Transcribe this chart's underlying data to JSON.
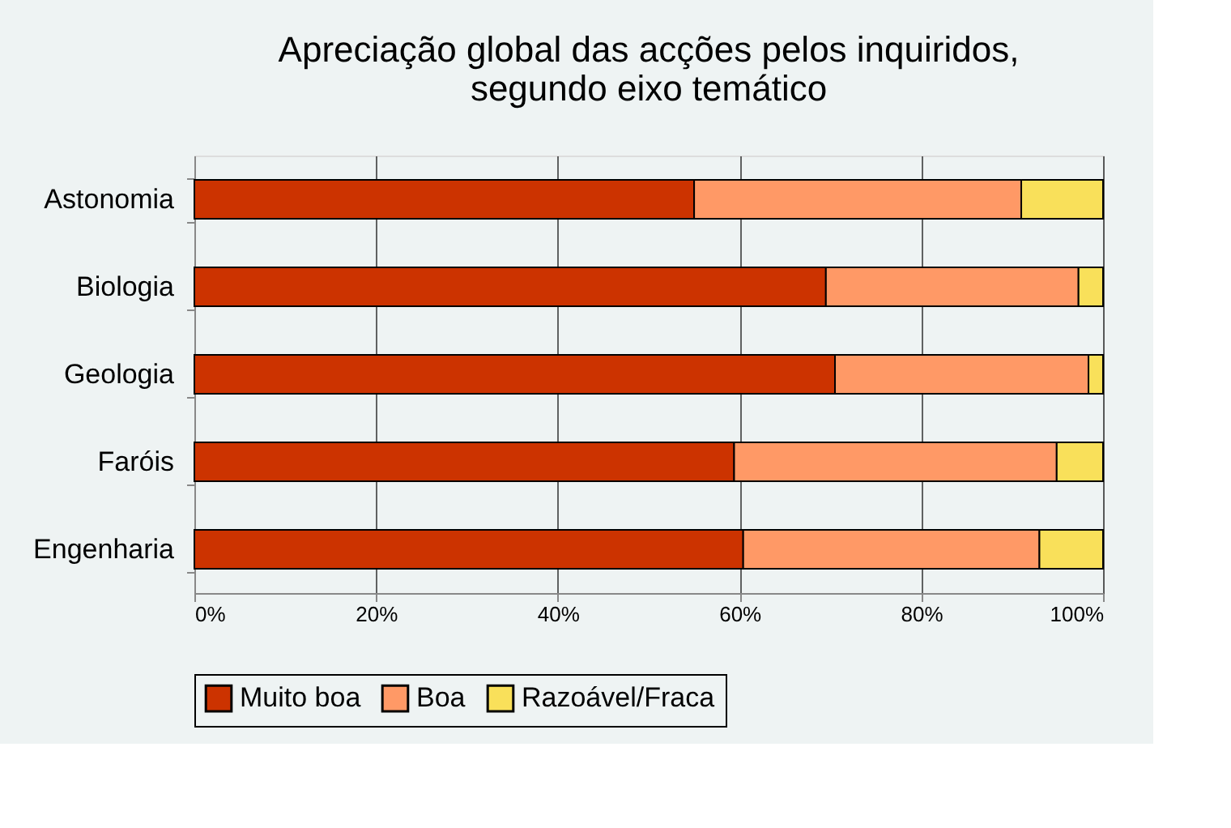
{
  "chart_data": {
    "type": "bar",
    "orientation": "horizontal",
    "stacked": true,
    "title": [
      "Apreciação global das acções pelos inquiridos,",
      "segundo eixo temático"
    ],
    "categories": [
      "Astonomia",
      "Biologia",
      "Geologia",
      "Faróis",
      "Engenharia"
    ],
    "series": [
      {
        "name": "Muito boa",
        "color": "#cc3300",
        "values": [
          55.0,
          69.5,
          70.5,
          59.4,
          60.4
        ]
      },
      {
        "name": "Boa",
        "color": "#ff9966",
        "values": [
          36.0,
          27.8,
          27.9,
          35.5,
          32.6
        ]
      },
      {
        "name": "Razoável/Fraca",
        "color": "#f9e05a",
        "values": [
          9.0,
          2.7,
          1.6,
          5.1,
          7.0
        ]
      }
    ],
    "xlim": [
      0,
      100
    ],
    "xticks": [
      {
        "value": 0,
        "label": "0%"
      },
      {
        "value": 20,
        "label": "20%"
      },
      {
        "value": 40,
        "label": "40%"
      },
      {
        "value": 60,
        "label": "60%"
      },
      {
        "value": 80,
        "label": "80%"
      },
      {
        "value": 100,
        "label": "100%"
      }
    ],
    "grid": "x",
    "legend": "bottom"
  }
}
